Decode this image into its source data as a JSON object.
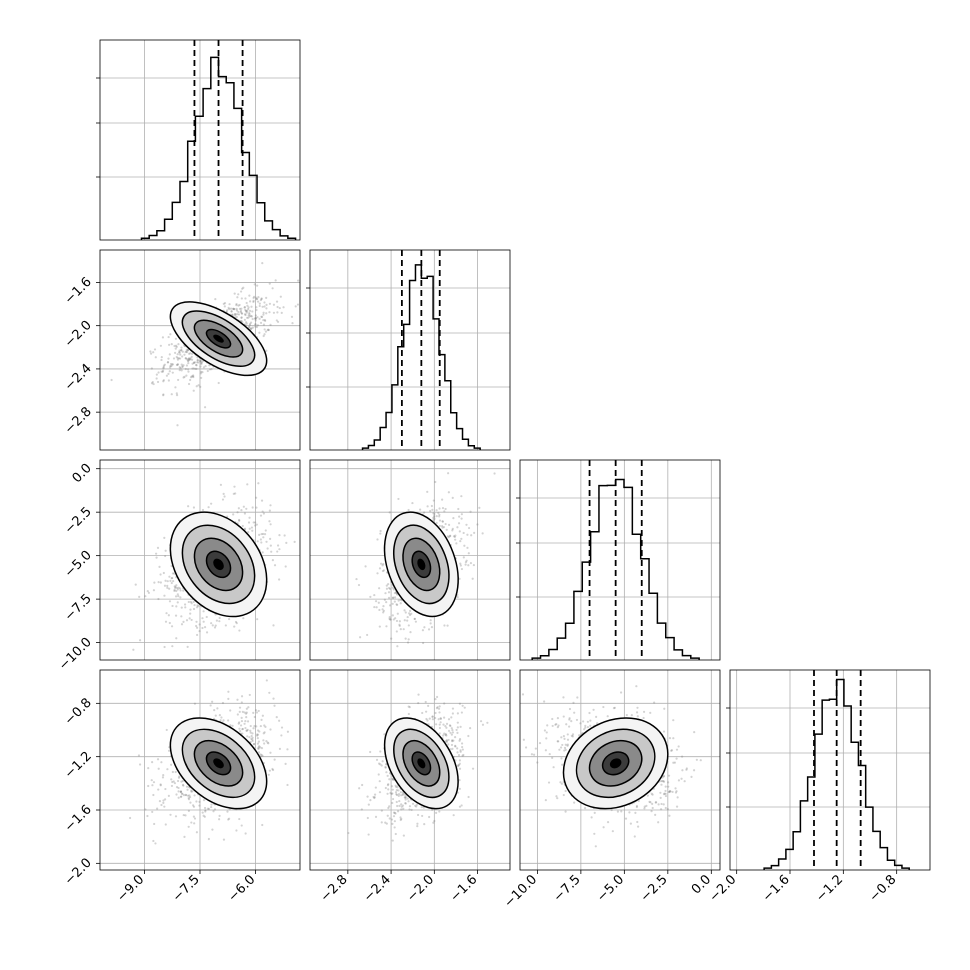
{
  "chart_data": {
    "type": "corner",
    "title": "",
    "parameters": [
      {
        "range": [
          -10.2,
          -4.8
        ],
        "ticks": [
          -9.0,
          -7.5,
          -6.0
        ],
        "tick_labels": [
          "−9.0",
          "−7.5",
          "−6.0"
        ],
        "quantiles": [
          -7.65,
          -7.0,
          -6.35
        ],
        "mean": -7.0,
        "std": 0.65,
        "hist_peak": 0.9
      },
      {
        "range": [
          -3.15,
          -1.3
        ],
        "ticks": [
          -2.8,
          -2.4,
          -2.0,
          -1.6
        ],
        "tick_labels": [
          "−2.8",
          "−2.4",
          "−2.0",
          "−1.6"
        ],
        "quantiles": [
          -2.3,
          -2.12,
          -1.95
        ],
        "mean": -2.12,
        "std": 0.17,
        "hist_peak": 0.95
      },
      {
        "range": [
          -11.0,
          0.5
        ],
        "ticks": [
          -10.0,
          -7.5,
          -5.0,
          -2.5,
          0.0
        ],
        "tick_labels": [
          "−10.0",
          "−7.5",
          "−5.0",
          "−2.5",
          "0.0"
        ],
        "quantiles": [
          -7.0,
          -5.5,
          -4.0
        ],
        "mean": -5.5,
        "std": 1.5,
        "hist_peak": 0.95
      },
      {
        "range": [
          -2.05,
          -0.55
        ],
        "ticks": [
          -2.0,
          -1.6,
          -1.2,
          -0.8
        ],
        "tick_labels": [
          "−2.0",
          "−1.6",
          "−1.2",
          "−0.8"
        ],
        "quantiles": [
          -1.42,
          -1.25,
          -1.07
        ],
        "mean": -1.25,
        "std": 0.17,
        "hist_peak": 0.95
      }
    ],
    "correlations": {
      "1-0": 0.6,
      "2-0": 0.3,
      "2-1": 0.3,
      "3-0": 0.4,
      "3-1": 0.4,
      "3-2": -0.2
    },
    "contour_levels_sigma": [
      0.5,
      1.0,
      1.5,
      2.0
    ],
    "grid": true,
    "colors": {
      "line": "#000000",
      "grid": "#b0b0b0",
      "scatter": "#808080",
      "density_dark": "#000000",
      "density_light": "#f2f2f2"
    }
  }
}
